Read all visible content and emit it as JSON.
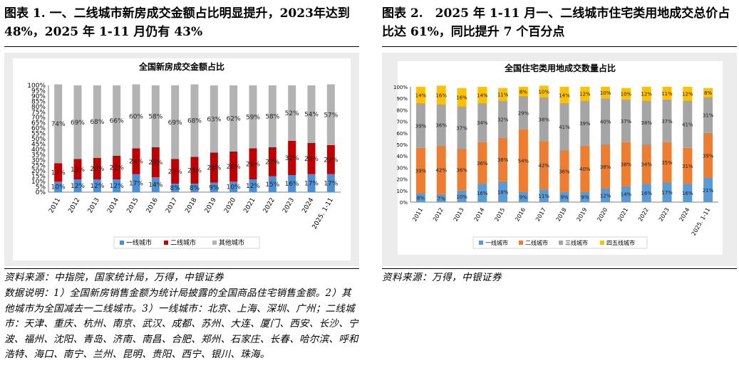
{
  "left": {
    "figure_title": "图表 1. 一、二线城市新房成交金额占比明显提升，2023年达到 48%，2025 年 1-11 月仍有 43%",
    "source": "资料来源：中指院，国家统计局，万得，中银证券",
    "notes": "数据说明：1）全国新房销售金额为统计局披露的全国商品住宅销售金额。2）其他城市为全国减去一二线城市。3）一线城市：北京、上海、深圳、广州；二线城市：天津、重庆、杭州、南京、武汉、成都、苏州、大连、厦门、西安、长沙、宁波、福州、沈阳、青岛、济南、南昌、合肥、郑州、石家庄、长春、哈尔滨、呼和浩特、海口、南宁、兰州、昆明、贵阳、西宁、银川、珠海。"
  },
  "right": {
    "figure_title": "图表 2.　2025 年 1-11 月一、二线城市住宅类用地成交总价占比达 61%，同比提升 7 个百分点",
    "source": "资料来源：万得，中银证券"
  },
  "chart_data": [
    {
      "type": "bar",
      "stacked": true,
      "title": "全国新房成交金额占比",
      "categories": [
        "2011",
        "2012",
        "2013",
        "2014",
        "2015",
        "2016",
        "2017",
        "2018",
        "2019",
        "2020",
        "2021",
        "2022",
        "2023",
        "2024",
        "2025. 1-11"
      ],
      "series": [
        {
          "name": "一线城市",
          "color": "#4a90d6",
          "values": [
            10,
            12,
            12,
            12,
            17,
            14,
            8,
            8,
            9,
            10,
            12,
            15,
            16,
            17,
            17
          ]
        },
        {
          "name": "二线城市",
          "color": "#c00000",
          "values": [
            17,
            19,
            20,
            22,
            24,
            28,
            23,
            25,
            28,
            28,
            29,
            27,
            32,
            29,
            27
          ]
        },
        {
          "name": "其他城市",
          "color": "#b3b3b3",
          "values": [
            74,
            69,
            68,
            66,
            60,
            58,
            69,
            68,
            63,
            62,
            59,
            58,
            52,
            54,
            57
          ]
        }
      ],
      "ylim": [
        0,
        100
      ],
      "yticks": [
        "0%",
        "5%",
        "10%",
        "15%",
        "20%",
        "25%",
        "30%",
        "35%",
        "40%",
        "45%",
        "50%",
        "55%",
        "60%",
        "65%",
        "70%",
        "75%",
        "80%",
        "85%",
        "90%",
        "95%",
        "100%"
      ],
      "legend": "bottom"
    },
    {
      "type": "bar",
      "stacked": true,
      "title": "全国住宅类用地成交数量占比",
      "categories": [
        "2011",
        "2012",
        "2013",
        "2014",
        "2015",
        "2016",
        "2017",
        "2018",
        "2019",
        "2020",
        "2021",
        "2022",
        "2023",
        "2024",
        "2025. 1-11"
      ],
      "series": [
        {
          "name": "一线城市",
          "color": "#5b9bd5",
          "values": [
            8,
            7,
            10,
            16,
            18,
            9,
            11,
            9,
            9,
            12,
            14,
            16,
            17,
            16,
            21
          ]
        },
        {
          "name": "二线城市",
          "color": "#ed7d31",
          "values": [
            39,
            42,
            36,
            36,
            38,
            54,
            42,
            36,
            40,
            38,
            38,
            34,
            35,
            31,
            39
          ]
        },
        {
          "name": "三线城市",
          "color": "#a5a5a5",
          "values": [
            39,
            36,
            37,
            34,
            32,
            29,
            38,
            41,
            39,
            40,
            37,
            38,
            37,
            41,
            31
          ]
        },
        {
          "name": "四五线城市",
          "color": "#ffc000",
          "values": [
            14,
            16,
            16,
            14,
            11,
            8,
            10,
            14,
            12,
            10,
            10,
            12,
            11,
            12,
            8
          ]
        }
      ],
      "ylim": [
        0,
        100
      ],
      "yticks": [
        "0%",
        "10%",
        "20%",
        "30%",
        "40%",
        "50%",
        "60%",
        "70%",
        "80%",
        "90%",
        "100%"
      ],
      "legend": "bottom"
    }
  ]
}
